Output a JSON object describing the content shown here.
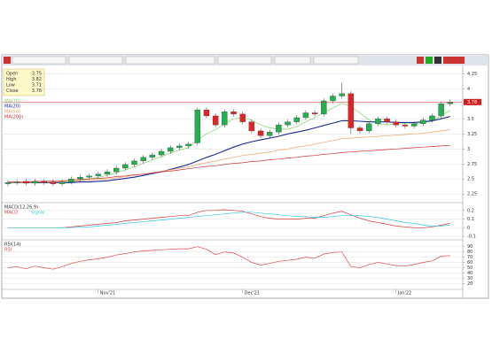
{
  "info_box": {
    "labels": [
      "Open",
      "High",
      "Low",
      "Close"
    ]
  },
  "chart_data": [
    {
      "type": "candlestick",
      "categories": [
        null,
        null,
        null,
        null,
        null,
        null,
        null,
        null,
        null,
        null,
        "Nov'21",
        null,
        null,
        null,
        null,
        null,
        null,
        null,
        null,
        null,
        null,
        null,
        null,
        null,
        null,
        null,
        "Dec'21",
        null,
        null,
        null,
        null,
        null,
        null,
        null,
        null,
        null,
        null,
        null,
        null,
        null,
        null,
        null,
        null,
        "Jan'22",
        null,
        null,
        null,
        null,
        null,
        null
      ],
      "open": [
        2.42,
        2.44,
        2.46,
        2.43,
        2.46,
        2.45,
        2.42,
        2.45,
        2.5,
        2.53,
        2.55,
        2.58,
        2.62,
        2.68,
        2.74,
        2.8,
        2.86,
        2.9,
        2.96,
        3.02,
        3.05,
        3.1,
        3.65,
        3.55,
        3.4,
        3.62,
        3.58,
        3.45,
        3.3,
        3.22,
        3.28,
        3.4,
        3.45,
        3.52,
        3.6,
        3.58,
        3.8,
        3.88,
        3.92,
        3.35,
        3.3,
        3.42,
        3.5,
        3.45,
        3.4,
        3.38,
        3.42,
        3.48,
        3.55,
        3.75
      ],
      "high": [
        2.48,
        2.49,
        2.5,
        2.5,
        2.5,
        2.49,
        2.49,
        2.54,
        2.57,
        2.59,
        2.62,
        2.66,
        2.72,
        2.78,
        2.84,
        2.9,
        2.94,
        3.0,
        3.06,
        3.09,
        3.12,
        3.69,
        3.69,
        3.59,
        3.66,
        3.66,
        3.62,
        3.49,
        3.34,
        3.32,
        3.44,
        3.49,
        3.56,
        3.64,
        3.64,
        3.84,
        3.92,
        4.1,
        3.96,
        3.39,
        3.46,
        3.54,
        3.54,
        3.49,
        3.44,
        3.46,
        3.52,
        3.59,
        3.79,
        3.82
      ],
      "low": [
        2.38,
        2.4,
        2.39,
        2.39,
        2.4,
        2.38,
        2.38,
        2.41,
        2.46,
        2.49,
        2.51,
        2.54,
        2.58,
        2.64,
        2.7,
        2.76,
        2.82,
        2.86,
        2.92,
        2.98,
        3.01,
        3.06,
        3.51,
        3.36,
        3.36,
        3.54,
        3.41,
        3.26,
        3.18,
        3.18,
        3.24,
        3.36,
        3.41,
        3.48,
        3.54,
        3.54,
        3.76,
        3.84,
        3.25,
        3.26,
        3.26,
        3.38,
        3.41,
        3.36,
        3.34,
        3.34,
        3.38,
        3.44,
        3.51,
        3.71
      ],
      "close": [
        2.44,
        2.45,
        2.43,
        2.46,
        2.44,
        2.42,
        2.45,
        2.5,
        2.53,
        2.55,
        2.58,
        2.62,
        2.68,
        2.74,
        2.8,
        2.86,
        2.9,
        2.96,
        3.02,
        3.05,
        3.08,
        3.65,
        3.55,
        3.4,
        3.62,
        3.58,
        3.45,
        3.3,
        3.22,
        3.28,
        3.4,
        3.45,
        3.52,
        3.6,
        3.58,
        3.8,
        3.88,
        3.92,
        3.35,
        3.3,
        3.42,
        3.5,
        3.45,
        3.4,
        3.38,
        3.42,
        3.48,
        3.55,
        3.75,
        3.78
      ],
      "up_color": "#22b14c",
      "down_color": "#e02424",
      "series": [
        {
          "name": "MA(10)",
          "color": "#7fd36a",
          "values": [
            2.43,
            2.44,
            2.44,
            2.44,
            2.45,
            2.44,
            2.44,
            2.45,
            2.47,
            2.5,
            2.53,
            2.56,
            2.6,
            2.65,
            2.7,
            2.76,
            2.82,
            2.87,
            2.93,
            2.98,
            3.02,
            3.15,
            3.25,
            3.32,
            3.42,
            3.5,
            3.52,
            3.48,
            3.4,
            3.35,
            3.33,
            3.33,
            3.37,
            3.45,
            3.52,
            3.6,
            3.68,
            3.76,
            3.7,
            3.6,
            3.48,
            3.42,
            3.4,
            3.42,
            3.42,
            3.42,
            3.44,
            3.46,
            3.55,
            3.64
          ]
        },
        {
          "name": "MA(20)",
          "color": "#1a2a9a",
          "values": [
            2.44,
            2.44,
            2.44,
            2.44,
            2.44,
            2.44,
            2.44,
            2.44,
            2.45,
            2.45,
            2.46,
            2.47,
            2.49,
            2.51,
            2.53,
            2.56,
            2.59,
            2.62,
            2.66,
            2.7,
            2.74,
            2.8,
            2.86,
            2.91,
            2.97,
            3.03,
            3.08,
            3.12,
            3.15,
            3.18,
            3.21,
            3.25,
            3.28,
            3.31,
            3.35,
            3.39,
            3.43,
            3.47,
            3.47,
            3.46,
            3.45,
            3.45,
            3.45,
            3.44,
            3.44,
            3.44,
            3.45,
            3.47,
            3.5,
            3.54
          ]
        },
        {
          "name": "MA(50)",
          "color": "#f0a070",
          "values": [
            2.44,
            2.44,
            2.44,
            2.45,
            2.45,
            2.45,
            2.46,
            2.46,
            2.47,
            2.48,
            2.49,
            2.5,
            2.52,
            2.54,
            2.56,
            2.58,
            2.6,
            2.63,
            2.65,
            2.68,
            2.7,
            2.74,
            2.77,
            2.8,
            2.83,
            2.86,
            2.89,
            2.91,
            2.93,
            2.95,
            2.98,
            3.0,
            3.03,
            3.05,
            3.08,
            3.11,
            3.14,
            3.17,
            3.18,
            3.19,
            3.2,
            3.21,
            3.22,
            3.23,
            3.24,
            3.25,
            3.26,
            3.28,
            3.3,
            3.32
          ]
        },
        {
          "name": "MA(200)",
          "color": "#d03030",
          "values": [
            2.45,
            2.45,
            2.45,
            2.46,
            2.46,
            2.47,
            2.47,
            2.48,
            2.49,
            2.5,
            2.51,
            2.52,
            2.54,
            2.55,
            2.57,
            2.58,
            2.6,
            2.62,
            2.63,
            2.65,
            2.67,
            2.69,
            2.71,
            2.72,
            2.74,
            2.76,
            2.77,
            2.79,
            2.8,
            2.82,
            2.83,
            2.85,
            2.86,
            2.88,
            2.89,
            2.91,
            2.92,
            2.94,
            2.95,
            2.96,
            2.97,
            2.98,
            2.99,
            3.0,
            3.01,
            3.02,
            3.03,
            3.04,
            3.05,
            3.06
          ]
        }
      ],
      "ylim": [
        2.15,
        4.3
      ],
      "yticks": [
        2.25,
        2.5,
        2.75,
        3,
        3.25,
        3.5,
        3.75,
        4,
        4.25
      ],
      "grid": true
    },
    {
      "type": "line",
      "title": "MACD(12,26,9)",
      "series": [
        {
          "name": "MACD",
          "color": "#d03a3a",
          "values": [
            0,
            0,
            0,
            0,
            0,
            0,
            0,
            0.01,
            0.02,
            0.03,
            0.04,
            0.05,
            0.06,
            0.08,
            0.09,
            0.1,
            0.11,
            0.12,
            0.13,
            0.14,
            0.14,
            0.18,
            0.2,
            0.2,
            0.21,
            0.2,
            0.19,
            0.16,
            0.13,
            0.11,
            0.1,
            0.1,
            0.1,
            0.11,
            0.11,
            0.14,
            0.17,
            0.19,
            0.15,
            0.11,
            0.08,
            0.06,
            0.04,
            0.02,
            0.01,
            0,
            0,
            0.01,
            0.03,
            0.05
          ]
        },
        {
          "name": "Signal",
          "color": "#38c8e0",
          "values": [
            0,
            0,
            0,
            0,
            0,
            0,
            0,
            0,
            0.01,
            0.01,
            0.02,
            0.03,
            0.04,
            0.05,
            0.06,
            0.07,
            0.08,
            0.09,
            0.1,
            0.11,
            0.12,
            0.13,
            0.14,
            0.15,
            0.16,
            0.17,
            0.18,
            0.18,
            0.17,
            0.16,
            0.15,
            0.14,
            0.13,
            0.13,
            0.12,
            0.12,
            0.13,
            0.14,
            0.14,
            0.14,
            0.13,
            0.12,
            0.1,
            0.08,
            0.06,
            0.05,
            0.03,
            0.02,
            0.02,
            0.03
          ]
        }
      ],
      "ylim": [
        -0.12,
        0.26
      ],
      "yticks": [
        -0.1,
        0,
        0.1,
        0.2
      ],
      "grid": true
    },
    {
      "type": "line",
      "title": "RSI(14)",
      "series": [
        {
          "name": "RSI",
          "color": "#e04848",
          "values": [
            50,
            52,
            48,
            53,
            50,
            47,
            52,
            58,
            62,
            65,
            67,
            70,
            74,
            77,
            80,
            82,
            83,
            84,
            85,
            86,
            86,
            90,
            85,
            75,
            80,
            78,
            70,
            60,
            55,
            58,
            62,
            64,
            66,
            70,
            68,
            76,
            79,
            80,
            52,
            50,
            56,
            60,
            57,
            54,
            53,
            56,
            60,
            63,
            72,
            73
          ]
        }
      ],
      "ylim": [
        12,
        98
      ],
      "yticks": [
        20,
        30,
        40,
        50,
        60,
        70,
        80,
        90
      ],
      "grid": true
    }
  ]
}
